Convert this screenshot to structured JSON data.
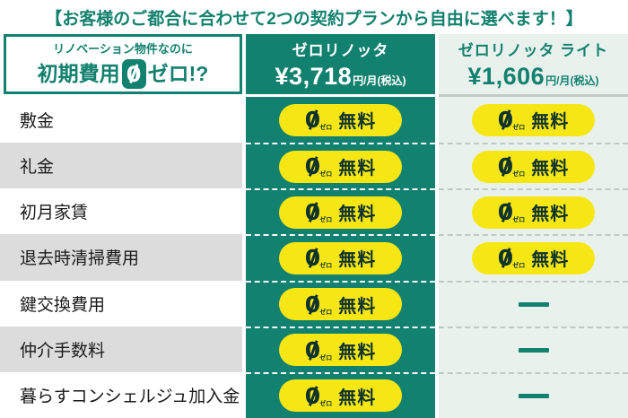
{
  "title": "【お客様のご都合に合わせて2つの契約プランから自由に選べます！】",
  "left_header": {
    "line1": "リノベーション物件なのに",
    "line2_pre": "初期費用",
    "zero": "0",
    "line2_post": "ゼロ!?"
  },
  "plan1": {
    "name": "ゼロリノッタ",
    "price": "¥3,718",
    "unit": "円/月(税込)"
  },
  "plan2": {
    "name": "ゼロリノッタ ライト",
    "price": "¥1,606",
    "unit": "円/月(税込)"
  },
  "badge": {
    "zero": "0",
    "zero_sub": "ゼロ",
    "label": "無料"
  },
  "dash": "—",
  "rows": [
    {
      "label": "敷金",
      "plan1": "free",
      "plan2": "free"
    },
    {
      "label": "礼金",
      "plan1": "free",
      "plan2": "free"
    },
    {
      "label": "初月家賃",
      "plan1": "free",
      "plan2": "free"
    },
    {
      "label": "退去時清掃費用",
      "plan1": "free",
      "plan2": "free"
    },
    {
      "label": "鍵交換費用",
      "plan1": "free",
      "plan2": "dash"
    },
    {
      "label": "仲介手数料",
      "plan1": "free",
      "plan2": "dash"
    },
    {
      "label": "暮らすコンシェルジュ加入金",
      "plan1": "free",
      "plan2": "dash"
    }
  ],
  "colors": {
    "teal": "#13816F",
    "yellow": "#F6E714",
    "light_green": "#E9F1ED",
    "row_alt_grey": "#DCDCDC",
    "badge_text": "#10332C"
  },
  "chart_data": {
    "type": "table",
    "title": "【お客様のご都合に合わせて2つの契約プランから自由に選べます！】",
    "columns": [
      "リノベーション物件なのに 初期費用0ゼロ!?",
      "ゼロリノッタ ¥3,718円/月(税込)",
      "ゼロリノッタ ライト ¥1,606円/月(税込)"
    ],
    "rows": [
      [
        "敷金",
        "0円 無料",
        "0円 無料"
      ],
      [
        "礼金",
        "0円 無料",
        "0円 無料"
      ],
      [
        "初月家賃",
        "0円 無料",
        "0円 無料"
      ],
      [
        "退去時清掃費用",
        "0円 無料",
        "0円 無料"
      ],
      [
        "鍵交換費用",
        "0円 無料",
        "—"
      ],
      [
        "仲介手数料",
        "0円 無料",
        "—"
      ],
      [
        "暮らすコンシェルジュ加入金",
        "0円 無料",
        "—"
      ]
    ]
  }
}
